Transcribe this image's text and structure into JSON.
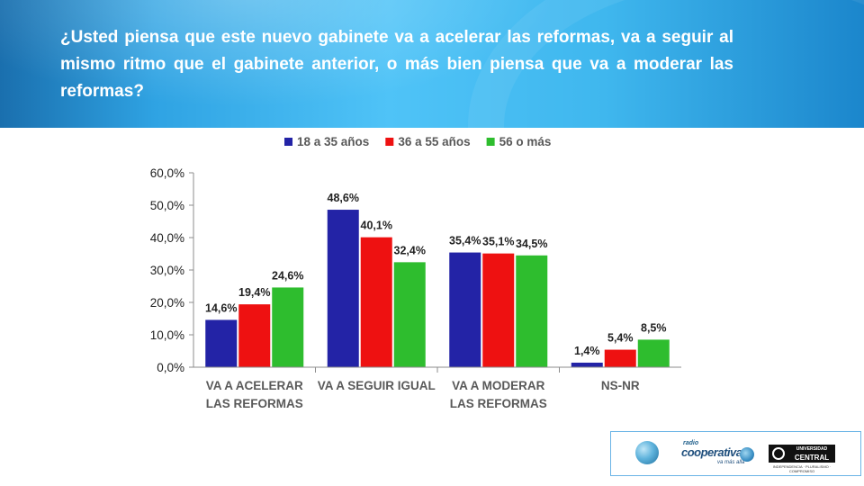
{
  "header": {
    "question": "¿Usted piensa que este nuevo gabinete va a acelerar las reformas, va a seguir al mismo ritmo que el gabinete anterior, o más bien piensa que va a moderar las reformas?"
  },
  "chart_data": {
    "type": "bar",
    "categories": [
      [
        "VA A ACELERAR",
        "LAS  REFORMAS"
      ],
      [
        "VA A SEGUIR IGUAL"
      ],
      [
        "VA A MODERAR",
        "LAS  REFORMAS"
      ],
      [
        "NS-NR"
      ]
    ],
    "series": [
      {
        "name": "18 a 35 años",
        "color": "#2323a6",
        "values": [
          14.6,
          48.6,
          35.4,
          1.4
        ],
        "labels": [
          "14,6%",
          "48,6%",
          "35,4%",
          "1,4%"
        ]
      },
      {
        "name": "36 a 55 años",
        "color": "#ee1111",
        "values": [
          19.4,
          40.1,
          35.1,
          5.4
        ],
        "labels": [
          "19,4%",
          "40,1%",
          "35,1%",
          "5,4%"
        ]
      },
      {
        "name": "56 o más",
        "color": "#2ebd2e",
        "values": [
          24.6,
          32.4,
          34.5,
          8.5
        ],
        "labels": [
          "24,6%",
          "32,4%",
          "34,5%",
          "8,5%"
        ]
      }
    ],
    "yticks": [
      "0,0%",
      "10,0%",
      "20,0%",
      "30,0%",
      "40,0%",
      "50,0%",
      "60,0%"
    ],
    "ylim": [
      0,
      60
    ],
    "legend_position": "top",
    "grid": false
  },
  "footer": {
    "radio_label": "radio",
    "brand": "cooperativa",
    "brand_tagline": "va más allá",
    "university_line1": "UNIVERSIDAD",
    "university_line2": "CENTRAL",
    "university_motto": "INDEPENDENCIA · PLURALISMO · COMPROMISO"
  }
}
